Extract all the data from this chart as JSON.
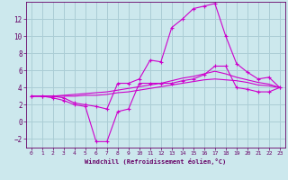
{
  "xlabel": "Windchill (Refroidissement éolien,°C)",
  "background_color": "#cce8ed",
  "grid_color": "#aacdd5",
  "line_color": "#cc00cc",
  "xlim": [
    -0.5,
    23.5
  ],
  "ylim": [
    -3.0,
    14.0
  ],
  "yticks": [
    -2,
    0,
    2,
    4,
    6,
    8,
    10,
    12
  ],
  "xticks": [
    0,
    1,
    2,
    3,
    4,
    5,
    6,
    7,
    8,
    9,
    10,
    11,
    12,
    13,
    14,
    15,
    16,
    17,
    18,
    19,
    20,
    21,
    22,
    23
  ],
  "x": [
    0,
    1,
    2,
    3,
    4,
    5,
    6,
    7,
    8,
    9,
    10,
    11,
    12,
    13,
    14,
    15,
    16,
    17,
    18,
    19,
    20,
    21,
    22,
    23
  ],
  "line1": [
    3.0,
    3.0,
    3.0,
    2.8,
    2.2,
    2.0,
    1.8,
    1.5,
    4.5,
    4.5,
    5.0,
    7.2,
    7.0,
    11.0,
    12.0,
    13.2,
    13.5,
    13.8,
    10.0,
    6.8,
    5.8,
    5.0,
    5.2,
    4.0
  ],
  "line2": [
    3.0,
    3.0,
    2.8,
    2.5,
    2.0,
    1.8,
    -2.3,
    -2.3,
    1.2,
    1.5,
    4.5,
    4.5,
    4.5,
    4.5,
    4.8,
    5.0,
    5.5,
    6.5,
    6.5,
    4.0,
    3.8,
    3.5,
    3.5,
    4.0
  ],
  "line3": [
    3.0,
    3.0,
    3.0,
    3.0,
    3.0,
    3.1,
    3.1,
    3.2,
    3.4,
    3.5,
    3.7,
    3.9,
    4.1,
    4.3,
    4.5,
    4.7,
    4.9,
    5.0,
    4.9,
    4.8,
    4.6,
    4.3,
    4.2,
    4.0
  ],
  "line4": [
    3.0,
    3.0,
    3.0,
    3.1,
    3.2,
    3.3,
    3.4,
    3.5,
    3.7,
    3.9,
    4.1,
    4.3,
    4.5,
    4.8,
    5.1,
    5.3,
    5.6,
    5.9,
    5.6,
    5.2,
    4.9,
    4.6,
    4.4,
    4.0
  ]
}
